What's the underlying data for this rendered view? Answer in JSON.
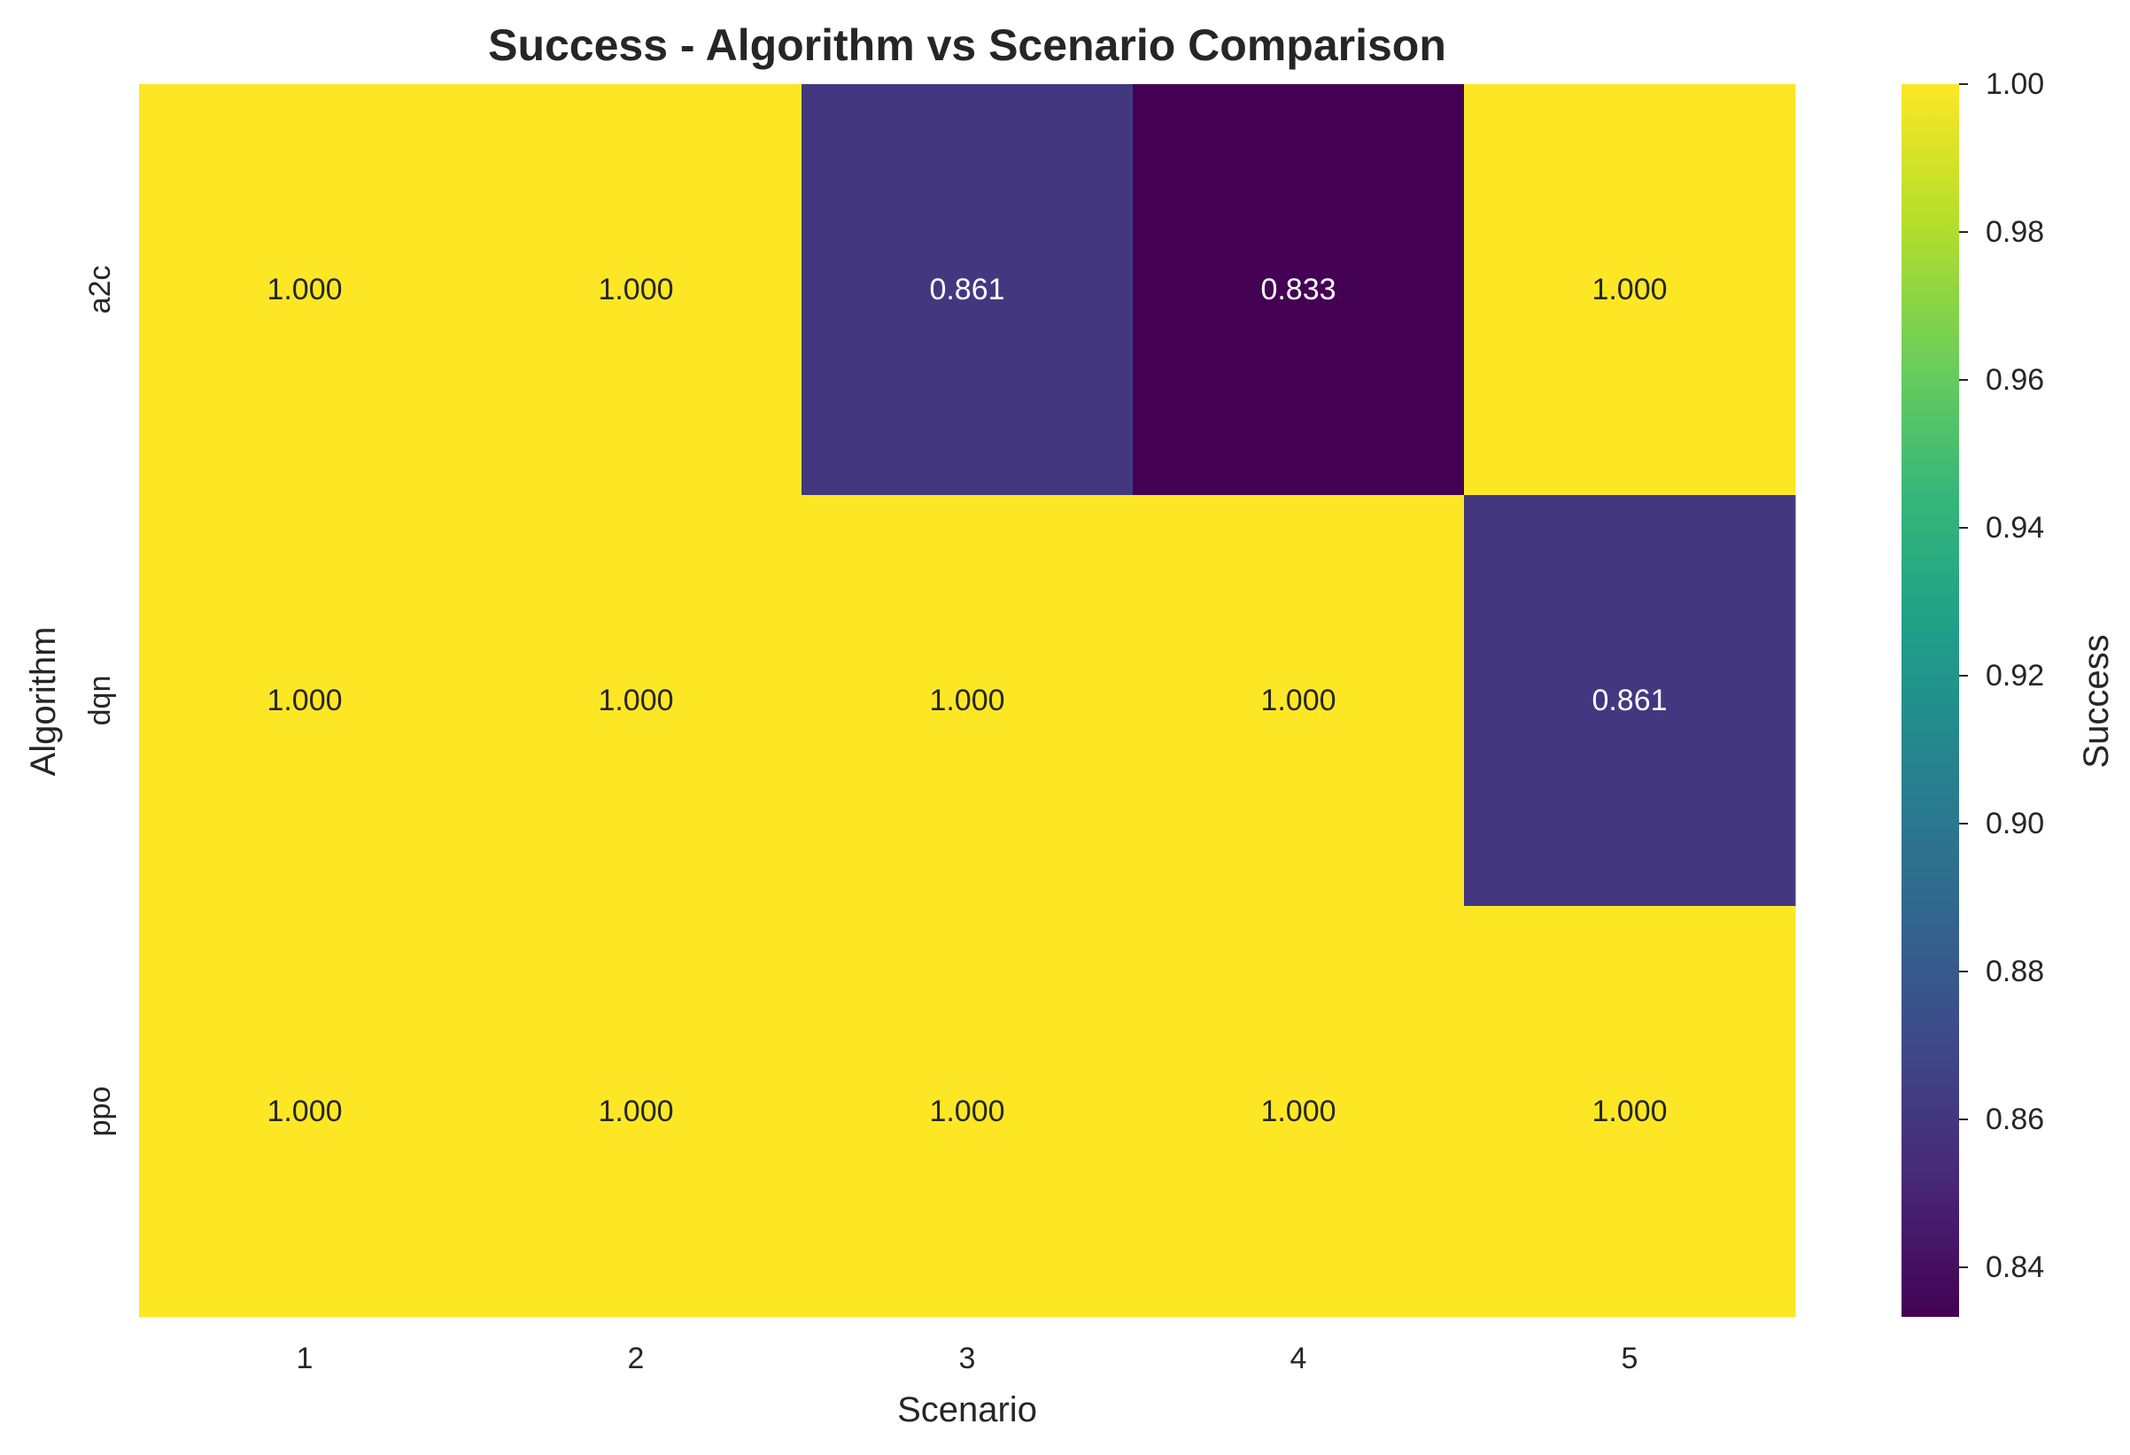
{
  "chart_data": {
    "type": "heatmap",
    "title": "Success - Algorithm vs Scenario Comparison",
    "xlabel": "Scenario",
    "ylabel": "Algorithm",
    "x_categories": [
      "1",
      "2",
      "3",
      "4",
      "5"
    ],
    "y_categories": [
      "a2c",
      "dqn",
      "ppo"
    ],
    "values": [
      [
        1.0,
        1.0,
        0.861,
        0.833,
        1.0
      ],
      [
        1.0,
        1.0,
        1.0,
        1.0,
        0.861
      ],
      [
        1.0,
        1.0,
        1.0,
        1.0,
        1.0
      ]
    ],
    "value_labels": [
      [
        "1.000",
        "1.000",
        "0.861",
        "0.833",
        "1.000"
      ],
      [
        "1.000",
        "1.000",
        "1.000",
        "1.000",
        "0.861"
      ],
      [
        "1.000",
        "1.000",
        "1.000",
        "1.000",
        "1.000"
      ]
    ],
    "colormap": "viridis",
    "vmin": 0.8333,
    "vmax": 1.0,
    "colorbar": {
      "label": "Success",
      "ticks": [
        0.84,
        0.86,
        0.88,
        0.9,
        0.92,
        0.94,
        0.96,
        0.98,
        1.0
      ],
      "tick_labels": [
        "0.84",
        "0.86",
        "0.88",
        "0.90",
        "0.92",
        "0.94",
        "0.96",
        "0.98",
        "1.00"
      ]
    },
    "grid": false,
    "colors": {
      "viridis_stops": [
        "#440154",
        "#482878",
        "#3e4989",
        "#31688e",
        "#26828e",
        "#1f9e89",
        "#35b779",
        "#6ece58",
        "#b5de2b",
        "#fde725"
      ],
      "text_dark": "#262626",
      "text_light": "#ffffff"
    }
  }
}
